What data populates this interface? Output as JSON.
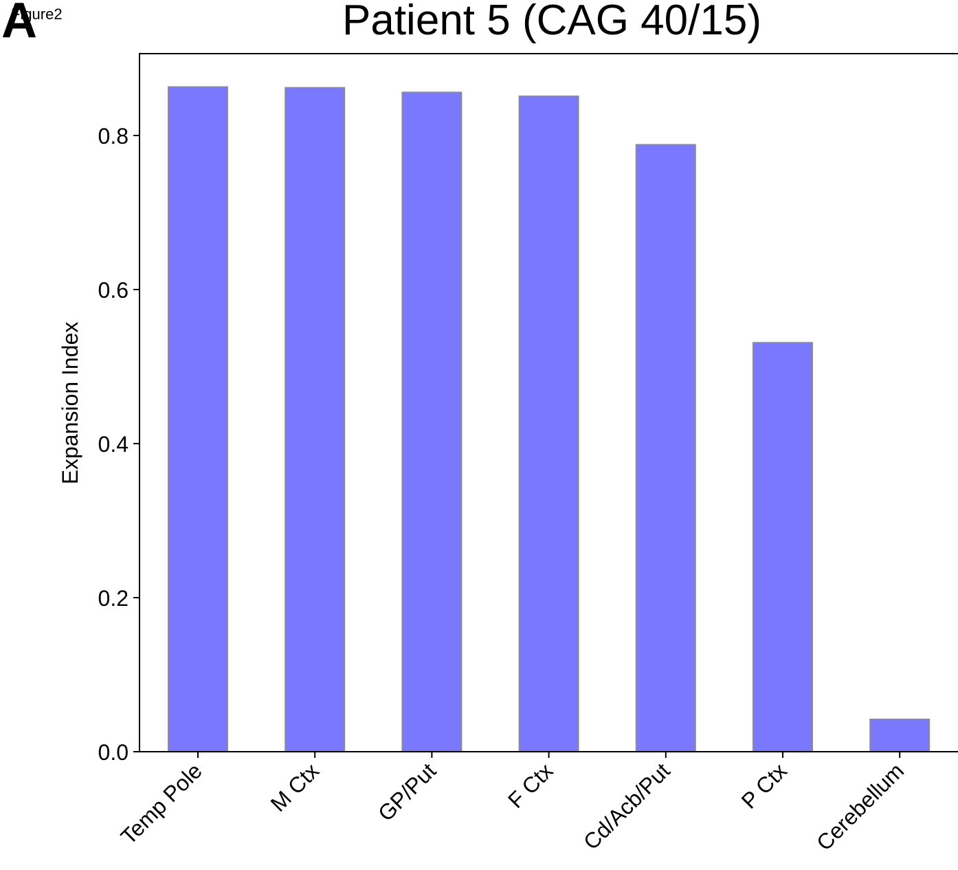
{
  "figure_note": "Figure2",
  "panel_letter": "A",
  "colors": {
    "bar_fill": "#7a78ff",
    "bar_edge": "#8c8c8c",
    "axis": "#000000"
  },
  "chart_data": {
    "type": "bar",
    "title": "Patient 5 (CAG 40/15)",
    "xlabel": "",
    "ylabel": "Expansion Index",
    "categories": [
      "Temp Pole",
      "M Ctx",
      "GP/Put",
      "F Ctx",
      "Cd/Acb/Put",
      "P Ctx",
      "Cerebellum"
    ],
    "values": [
      0.863,
      0.862,
      0.856,
      0.851,
      0.788,
      0.531,
      0.042
    ],
    "ylim": [
      0,
      0.9
    ],
    "yticks": [
      0.0,
      0.2,
      0.4,
      0.6,
      0.8
    ],
    "ytick_labels": [
      "0.0",
      "0.2",
      "0.4",
      "0.6",
      "0.8"
    ],
    "grid": false,
    "legend": "none"
  }
}
